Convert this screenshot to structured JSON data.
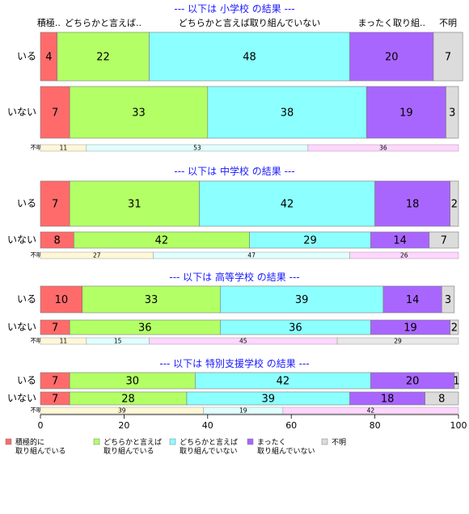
{
  "colors": [
    "#ff6b6b",
    "#b3ff66",
    "#8cffff",
    "#a966ff",
    "#dcdcdc"
  ],
  "legend": [
    [
      "積極的に",
      "取り組んでいる"
    ],
    [
      "どちらかと言えば",
      "取り組んでいる"
    ],
    [
      "どちらかと言えば",
      "取り組んでいない"
    ],
    [
      "まったく",
      "取り組んでいない"
    ],
    [
      "不明"
    ]
  ],
  "top_labels": [
    "積極..",
    "どちらかと言えば..",
    "どちらかと言えば取り組んでいない",
    "まったく取り組..",
    "不明"
  ],
  "chart_data": {
    "type": "bar",
    "orientation": "horizontal",
    "stacked": true,
    "percent": true,
    "xlim": [
      0,
      100
    ],
    "xticks": [
      0,
      20,
      40,
      60,
      80,
      100
    ],
    "series_names": [
      "積極的に取り組んでいる",
      "どちらかと言えば取り組んでいる",
      "どちらかと言えば取り組んでいない",
      "まったく取り組んでいない",
      "不明"
    ],
    "panels": [
      {
        "title": "--- 以下は 小学校 の結果 ---",
        "rows": [
          {
            "label": "いる",
            "values": [
              4,
              22,
              48,
              20,
              7
            ]
          },
          {
            "label": "いない",
            "values": [
              7,
              33,
              38,
              19,
              3
            ]
          }
        ],
        "marginal_label": "不明",
        "marginal": [
          11,
          53,
          36
        ]
      },
      {
        "title": "--- 以下は 中学校 の結果 ---",
        "rows": [
          {
            "label": "いる",
            "values": [
              7,
              31,
              42,
              18,
              2
            ]
          },
          {
            "label": "いない",
            "values": [
              8,
              42,
              29,
              14,
              7
            ]
          }
        ],
        "marginal_label": "不明",
        "marginal": [
          27,
          47,
          26
        ]
      },
      {
        "title": "--- 以下は 高等学校 の結果 ---",
        "rows": [
          {
            "label": "いる",
            "values": [
              10,
              33,
              39,
              14,
              3
            ]
          },
          {
            "label": "いない",
            "values": [
              7,
              36,
              36,
              19,
              2
            ]
          }
        ],
        "marginal_label": "不明",
        "marginal": [
          11,
          15,
          45,
          29
        ]
      },
      {
        "title": "--- 以下は 特別支援学校 の結果 ---",
        "rows": [
          {
            "label": "いる",
            "values": [
              7,
              30,
              42,
              20,
              1
            ]
          },
          {
            "label": "いない",
            "values": [
              7,
              28,
              39,
              18,
              8
            ]
          }
        ],
        "marginal_label": "不明",
        "marginal": [
          39,
          19,
          42
        ]
      }
    ]
  }
}
